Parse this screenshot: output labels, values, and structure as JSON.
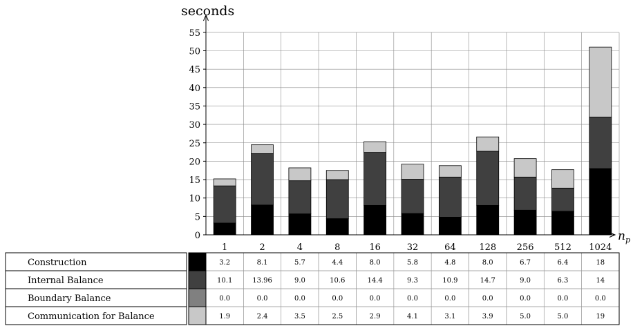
{
  "chart_data": {
    "type": "bar",
    "stacked": true,
    "ylabel": "seconds",
    "xlabel": "n_p",
    "ylim": [
      0,
      55
    ],
    "yticks": [
      0,
      5,
      10,
      15,
      20,
      25,
      30,
      35,
      40,
      45,
      50,
      55
    ],
    "grid": true,
    "categories": [
      "1",
      "2",
      "4",
      "8",
      "16",
      "32",
      "64",
      "128",
      "256",
      "512",
      "1024"
    ],
    "series": [
      {
        "name": "Construction",
        "color": "#000000",
        "values": [
          3.2,
          8.1,
          5.7,
          4.4,
          8.0,
          5.8,
          4.8,
          8.0,
          6.7,
          6.4,
          18
        ],
        "labels": [
          "3.2",
          "8.1",
          "5.7",
          "4.4",
          "8.0",
          "5.8",
          "4.8",
          "8.0",
          "6.7",
          "6.4",
          "18"
        ]
      },
      {
        "name": "Internal Balance",
        "color": "#404040",
        "values": [
          10.1,
          13.96,
          9.0,
          10.6,
          14.4,
          9.3,
          10.9,
          14.7,
          9.0,
          6.3,
          14
        ],
        "labels": [
          "10.1",
          "13.96",
          "9.0",
          "10.6",
          "14.4",
          "9.3",
          "10.9",
          "14.7",
          "9.0",
          "6.3",
          "14"
        ]
      },
      {
        "name": "Boundary Balance",
        "color": "#808080",
        "values": [
          0,
          0,
          0,
          0,
          0,
          0,
          0,
          0,
          0,
          0,
          0
        ],
        "labels": [
          "0.0",
          "0.0",
          "0.0",
          "0.0",
          "0.0",
          "0.0",
          "0.0",
          "0.0",
          "0.0",
          "0.0",
          "0.0"
        ]
      },
      {
        "name": "Communication for Balance",
        "color": "#c8c8c8",
        "values": [
          1.9,
          2.4,
          3.5,
          2.5,
          2.9,
          4.1,
          3.1,
          3.9,
          5.0,
          5.0,
          19
        ],
        "labels": [
          "1.9",
          "2.4",
          "3.5",
          "2.5",
          "2.9",
          "4.1",
          "3.1",
          "3.9",
          "5.0",
          "5.0",
          "19"
        ]
      }
    ]
  }
}
